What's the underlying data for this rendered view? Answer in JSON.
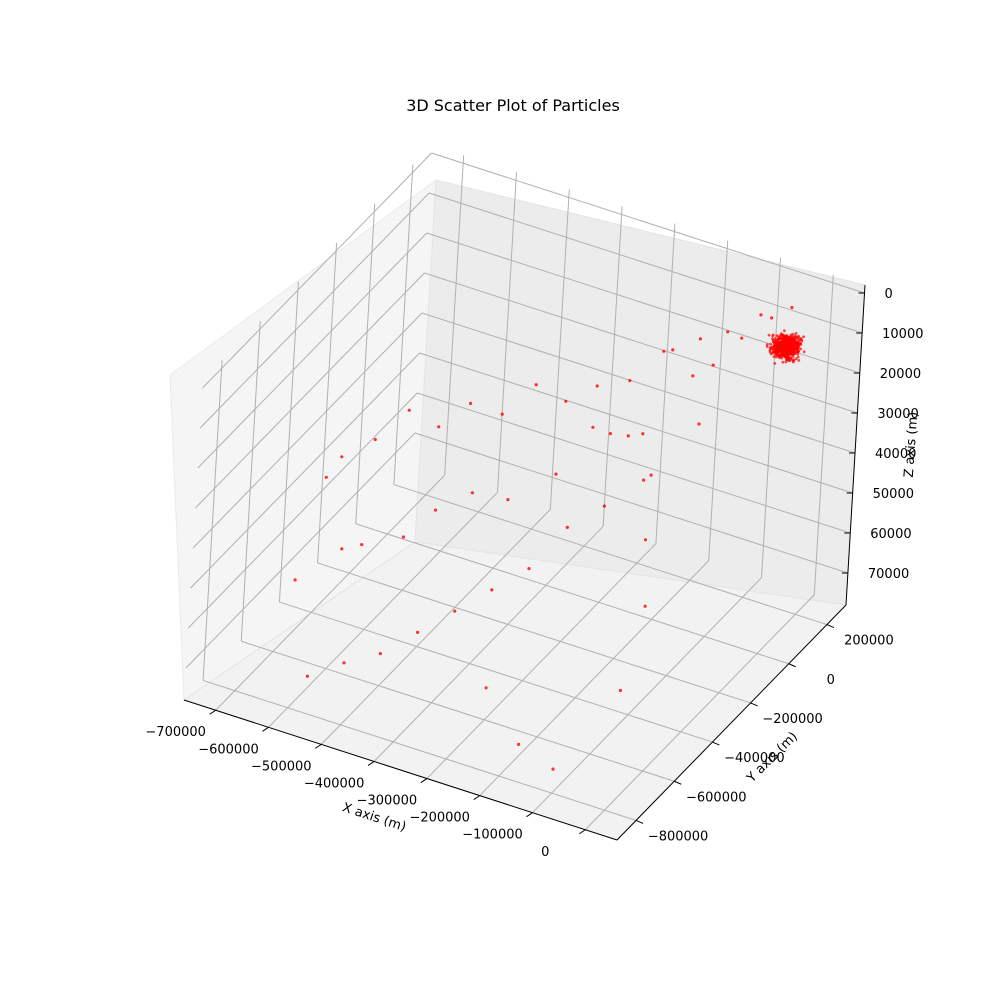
{
  "chart_data": {
    "type": "scatter",
    "projection": "3d",
    "title": "3D Scatter Plot of Particles",
    "xlabel": "X axis (m)",
    "ylabel": "Y axis (m)",
    "zlabel": "Z axis (m)",
    "x_ticks": [
      "−700000",
      "−600000",
      "−500000",
      "−400000",
      "−300000",
      "−200000",
      "−100000",
      "0"
    ],
    "y_ticks": [
      "−800000",
      "−600000",
      "−400000",
      "−200000",
      "0",
      "200000"
    ],
    "z_ticks": [
      "0",
      "10000",
      "20000",
      "30000",
      "40000",
      "50000",
      "60000",
      "70000"
    ],
    "xlim": [
      -760000,
      60000
    ],
    "ylim": [
      -900000,
      300000
    ],
    "zlim": [
      -78000,
      2000
    ],
    "grid": true,
    "marker_color": "#ff0000",
    "series": [
      {
        "cluster": {
          "x": -20000,
          "y": 120000,
          "z": -8000,
          "count": 700
        },
        "values": [
          [
            -80000,
            50000,
            -5000
          ],
          [
            -120000,
            20000,
            -12000
          ],
          [
            -150000,
            0,
            -15000
          ],
          [
            -200000,
            -20000,
            -10000
          ],
          [
            -250000,
            -50000,
            -18000
          ],
          [
            -300000,
            -80000,
            -20000
          ],
          [
            -350000,
            -100000,
            -25000
          ],
          [
            -400000,
            -120000,
            -22000
          ],
          [
            -450000,
            -150000,
            -30000
          ],
          [
            -500000,
            -180000,
            -28000
          ],
          [
            -550000,
            -200000,
            -35000
          ],
          [
            -600000,
            -220000,
            -32000
          ],
          [
            -650000,
            -250000,
            -40000
          ],
          [
            -700000,
            -280000,
            -45000
          ],
          [
            -720000,
            -300000,
            -50000
          ],
          [
            -100000,
            -100000,
            -20000
          ],
          [
            -150000,
            -200000,
            -30000
          ],
          [
            -200000,
            -300000,
            -35000
          ],
          [
            -250000,
            -350000,
            -40000
          ],
          [
            -300000,
            -400000,
            -50000
          ],
          [
            -350000,
            -450000,
            -55000
          ],
          [
            -400000,
            -500000,
            -60000
          ],
          [
            -450000,
            -550000,
            -65000
          ],
          [
            -500000,
            -600000,
            -70000
          ],
          [
            -550000,
            -650000,
            -72000
          ],
          [
            -600000,
            -700000,
            -75000
          ],
          [
            -650000,
            -400000,
            -60000
          ],
          [
            -700000,
            -500000,
            -65000
          ],
          [
            -300000,
            -600000,
            -70000
          ],
          [
            -200000,
            -700000,
            -75000
          ],
          [
            -100000,
            -800000,
            -72000
          ],
          [
            -50000,
            -600000,
            -60000
          ],
          [
            -80000,
            -400000,
            -50000
          ],
          [
            -120000,
            -300000,
            -40000
          ],
          [
            -180000,
            -150000,
            -35000
          ],
          [
            -220000,
            -50000,
            -30000
          ],
          [
            -280000,
            50000,
            -38000
          ],
          [
            -330000,
            100000,
            -42000
          ],
          [
            -380000,
            150000,
            -45000
          ],
          [
            -420000,
            80000,
            -55000
          ],
          [
            -480000,
            0,
            -60000
          ],
          [
            -530000,
            -50000,
            -58000
          ],
          [
            -580000,
            -100000,
            -62000
          ],
          [
            -620000,
            -150000,
            -68000
          ],
          [
            -680000,
            -200000,
            -70000
          ],
          [
            -60000,
            150000,
            -4000
          ],
          [
            -90000,
            180000,
            -6000
          ],
          [
            -40000,
            200000,
            -3000
          ],
          [
            -130000,
            120000,
            -9000
          ],
          [
            -170000,
            90000,
            -11000
          ],
          [
            -210000,
            60000,
            -14000
          ]
        ]
      }
    ]
  }
}
